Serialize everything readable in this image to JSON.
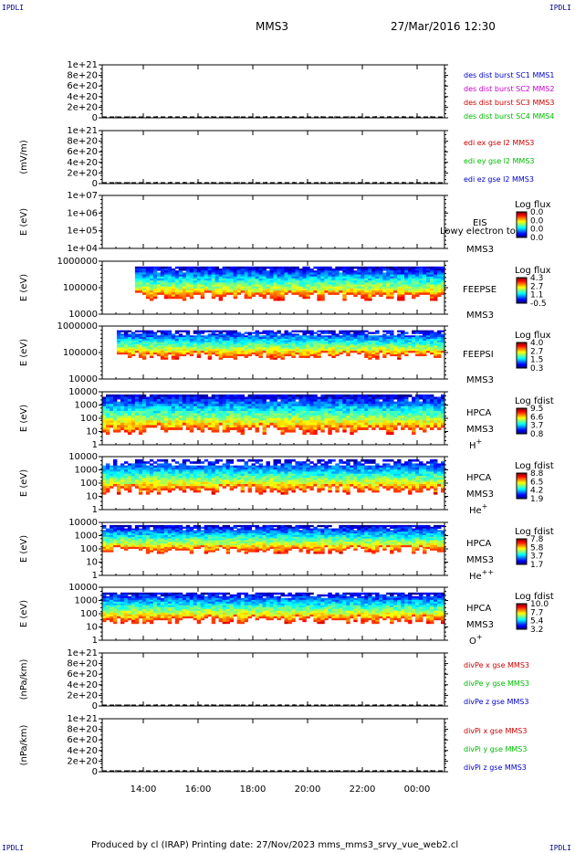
{
  "header": {
    "left_tag": "IPDLI",
    "right_tag": "IPDLI",
    "spacecraft": "MMS3",
    "datetime": "27/Mar/2016 12:30"
  },
  "footer": {
    "left_tag": "IPDLI",
    "right_tag": "IPDLI",
    "text": "Produced by cl (IRAP)    Printing date: 27/Nov/2023    mms_mms3_srvy_vue_web2.cl"
  },
  "time_axis": {
    "ticks": [
      "14:00",
      "16:00",
      "18:00",
      "20:00",
      "22:00",
      "00:00"
    ],
    "tick_hours": [
      14,
      16,
      18,
      20,
      22,
      24
    ],
    "start_hour": 12.5,
    "end_hour": 25.0
  },
  "chart_data": [
    {
      "type": "line",
      "id": "des-dist-burst",
      "ylabel": "",
      "yticks": [
        "1e+21",
        "8e+20",
        "6e+20",
        "4e+20",
        "2e+20",
        "0"
      ],
      "legend": [
        {
          "name": "des dist burst SC1 MMS1",
          "color": "#0000cc"
        },
        {
          "name": "des dist burst SC2 MMS2",
          "color": "#cc00cc"
        },
        {
          "name": "des dist burst SC3 MMS3",
          "color": "#cc0000"
        },
        {
          "name": "des dist burst SC4 MMS4",
          "color": "#00bb00"
        }
      ]
    },
    {
      "type": "line",
      "id": "edi-e-gse",
      "ylabel": "(mV/m)",
      "yticks": [
        "1e+21",
        "8e+20",
        "6e+20",
        "4e+20",
        "2e+20",
        "0"
      ],
      "legend": [
        {
          "name": "edi ex gse l2 MMS3",
          "color": "#cc0000"
        },
        {
          "name": "edi ey gse l2 MMS3",
          "color": "#00bb00"
        },
        {
          "name": "edi ez gse l2 MMS3",
          "color": "#0000cc"
        }
      ]
    },
    {
      "type": "heatmap",
      "id": "eis",
      "ylabel": "E (eV)",
      "yticks": [
        "1e+07",
        "1e+06",
        "1e+05",
        "1e+04"
      ],
      "instrument": [
        "EIS",
        "MMS3"
      ],
      "overlay_label": "Lowy electron to",
      "colorbar_title": "Log flux",
      "colorbar_ticks": [
        "0.0",
        "0.0",
        "0.0",
        "0.0"
      ],
      "has_data": false
    },
    {
      "type": "heatmap",
      "id": "feepse",
      "ylabel": "E (eV)",
      "yticks": [
        "1000000",
        "100000",
        "10000"
      ],
      "instrument": [
        "FEEPSE",
        "MMS3"
      ],
      "colorbar_title": "Log flux",
      "colorbar_ticks": [
        "4.3",
        "2.7",
        "1.1",
        "-0.5"
      ],
      "has_data": true
    },
    {
      "type": "heatmap",
      "id": "feepsi",
      "ylabel": "E (eV)",
      "yticks": [
        "1000000",
        "100000",
        "10000"
      ],
      "instrument": [
        "FEEPSI",
        "MMS3"
      ],
      "colorbar_title": "Log flux",
      "colorbar_ticks": [
        "4.0",
        "2.7",
        "1.5",
        "0.3"
      ],
      "has_data": true
    },
    {
      "type": "heatmap",
      "id": "hpca-h",
      "ylabel": "E (eV)",
      "yticks": [
        "10000",
        "1000",
        "100",
        "10",
        "1"
      ],
      "instrument": [
        "HPCA",
        "MMS3",
        "H+"
      ],
      "colorbar_title": "Log fdist",
      "colorbar_ticks": [
        "9.5",
        "6.6",
        "3.7",
        "0.8"
      ],
      "has_data": true
    },
    {
      "type": "heatmap",
      "id": "hpca-he",
      "ylabel": "E (eV)",
      "yticks": [
        "10000",
        "1000",
        "100",
        "10",
        "1"
      ],
      "instrument": [
        "HPCA",
        "MMS3",
        "He+"
      ],
      "colorbar_title": "Log fdist",
      "colorbar_ticks": [
        "8.8",
        "6.5",
        "4.2",
        "1.9"
      ],
      "has_data": true
    },
    {
      "type": "heatmap",
      "id": "hpca-hepp",
      "ylabel": "E (eV)",
      "yticks": [
        "10000",
        "1000",
        "100",
        "10",
        "1"
      ],
      "instrument": [
        "HPCA",
        "MMS3",
        "He++"
      ],
      "colorbar_title": "Log fdist",
      "colorbar_ticks": [
        "7.8",
        "5.8",
        "3.7",
        "1.7"
      ],
      "has_data": true
    },
    {
      "type": "heatmap",
      "id": "hpca-o",
      "ylabel": "E (eV)",
      "yticks": [
        "10000",
        "1000",
        "100",
        "10",
        "1"
      ],
      "instrument": [
        "HPCA",
        "MMS3",
        "O+"
      ],
      "colorbar_title": "Log fdist",
      "colorbar_ticks": [
        "10.0",
        "7.7",
        "5.4",
        "3.2"
      ],
      "has_data": true
    },
    {
      "type": "line",
      "id": "divpe",
      "ylabel": "(nPa/km)",
      "yticks": [
        "1e+21",
        "8e+20",
        "6e+20",
        "4e+20",
        "2e+20",
        "0"
      ],
      "legend": [
        {
          "name": "divPe x gse MMS3",
          "color": "#cc0000"
        },
        {
          "name": "divPe y gse MMS3",
          "color": "#00bb00"
        },
        {
          "name": "divPe z gse MMS3",
          "color": "#0000cc"
        }
      ]
    },
    {
      "type": "line",
      "id": "divpi",
      "ylabel": "(nPa/km)",
      "yticks": [
        "1e+21",
        "8e+20",
        "6e+20",
        "4e+20",
        "2e+20",
        "0"
      ],
      "legend": [
        {
          "name": "divPi x gse MMS3",
          "color": "#cc0000"
        },
        {
          "name": "divPi y gse MMS3",
          "color": "#00bb00"
        },
        {
          "name": "divPi z gse MMS3",
          "color": "#0000cc"
        }
      ]
    }
  ]
}
